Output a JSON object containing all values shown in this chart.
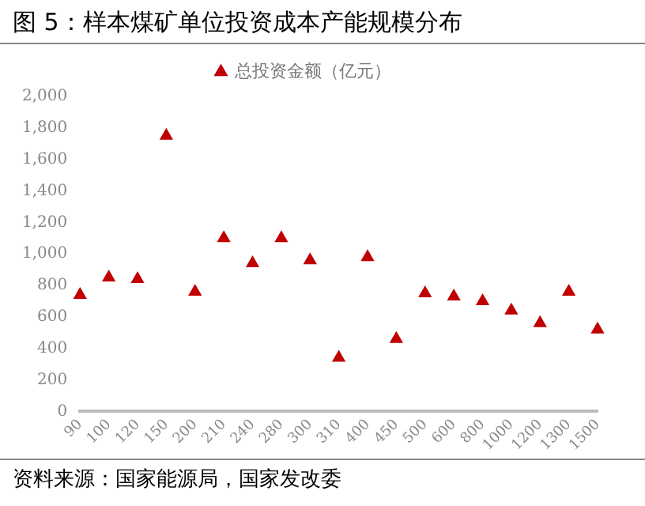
{
  "chart_data": {
    "type": "scatter",
    "title": "图 5：样本煤矿单位投资成本产能规模分布",
    "categories": [
      "90",
      "100",
      "120",
      "150",
      "200",
      "210",
      "240",
      "280",
      "300",
      "310",
      "400",
      "450",
      "500",
      "600",
      "800",
      "1000",
      "1200",
      "1300",
      "1500"
    ],
    "series": [
      {
        "name": "总投资金额（亿元）",
        "color": "#c00000",
        "values": [
          740,
          850,
          840,
          1750,
          760,
          1100,
          940,
          1100,
          960,
          340,
          980,
          460,
          750,
          730,
          700,
          640,
          560,
          760,
          520
        ]
      }
    ],
    "ylim": [
      0,
      2000
    ],
    "yticks": [
      {
        "value": 0,
        "label": "0"
      },
      {
        "value": 200,
        "label": "200"
      },
      {
        "value": 400,
        "label": "400"
      },
      {
        "value": 600,
        "label": "600"
      },
      {
        "value": 800,
        "label": "800"
      },
      {
        "value": 1000,
        "label": "1,000"
      },
      {
        "value": 1200,
        "label": "1,200"
      },
      {
        "value": 1400,
        "label": "1,400"
      },
      {
        "value": 1600,
        "label": "1,600"
      },
      {
        "value": 1800,
        "label": "1,800"
      },
      {
        "value": 2000,
        "label": "2,000"
      }
    ],
    "grid": false,
    "legend": "top",
    "marker": "triangle",
    "annotations": [
      "资料来源：国家能源局，国家发改委"
    ]
  }
}
